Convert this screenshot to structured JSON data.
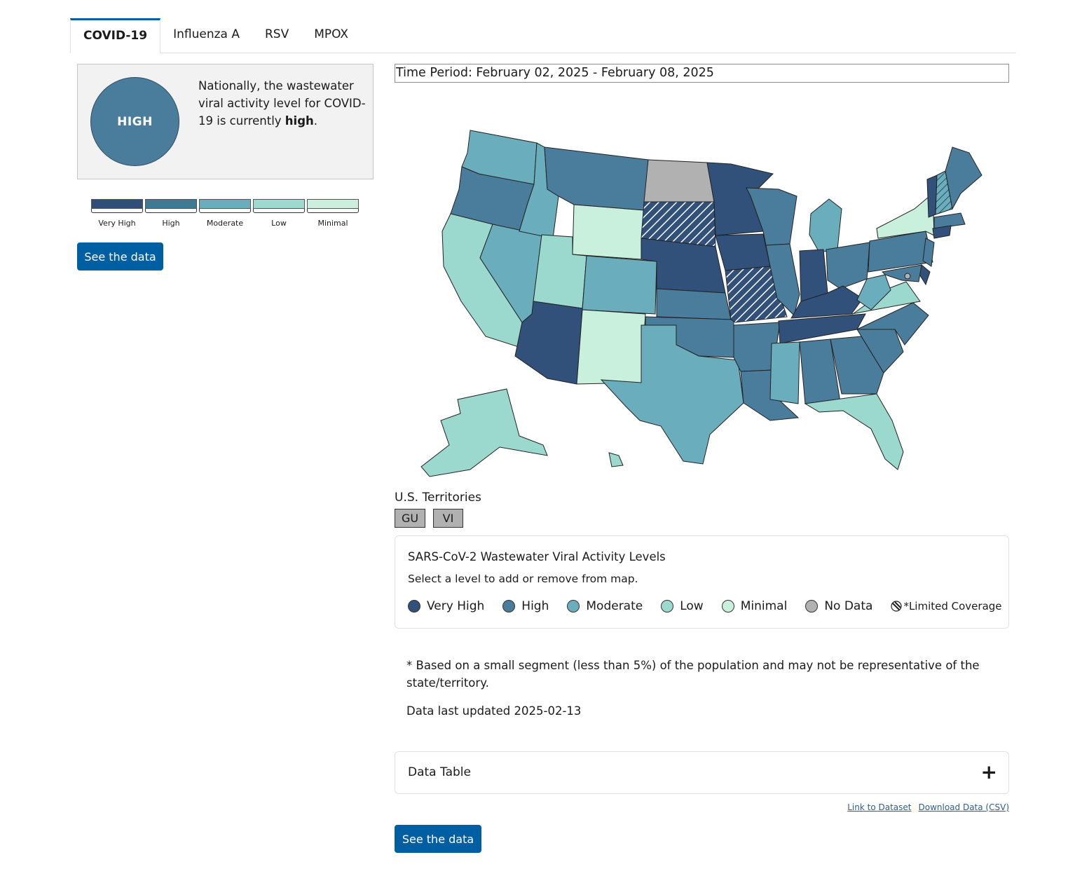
{
  "tabs": [
    {
      "label": "COVID-19",
      "active": true
    },
    {
      "label": "Influenza A",
      "active": false
    },
    {
      "label": "RSV",
      "active": false
    },
    {
      "label": "MPOX",
      "active": false
    }
  ],
  "summary": {
    "level_badge": "HIGH",
    "text_prefix": "Nationally, the wastewater viral activity level for COVID-19 is currently",
    "text_level": "high",
    "text_suffix": "."
  },
  "scale": [
    {
      "label": "Very High",
      "color": "#2f4f78"
    },
    {
      "label": "High",
      "color": "#3f7a93"
    },
    {
      "label": "Moderate",
      "color": "#6aaebe"
    },
    {
      "label": "Low",
      "color": "#9dd9cf"
    },
    {
      "label": "Minimal",
      "color": "#cbeedd"
    }
  ],
  "see_data_label": "See the data",
  "time_period": "Time Period: February 02, 2025 - February 08, 2025",
  "colors": {
    "very_high": "#31507a",
    "high": "#4a7d9b",
    "moderate": "#6aaebd",
    "low": "#9bd8cd",
    "minimal": "#c9f0dc",
    "no_data": "#b1b1b1"
  },
  "state_levels": {
    "WA": "moderate",
    "OR": "high",
    "CA": "low",
    "NV": "moderate",
    "ID": "moderate",
    "MT": "high",
    "WY": "minimal",
    "UT": "low",
    "AZ": "very_high",
    "CO": "moderate",
    "NM": "minimal",
    "ND": "no_data",
    "SD": "very_high",
    "NE": "very_high",
    "KS": "high",
    "OK": "high",
    "TX": "moderate",
    "MN": "very_high",
    "IA": "very_high",
    "MO": "very_high",
    "AR": "high",
    "LA": "high",
    "WI": "high",
    "IL": "high",
    "MI": "moderate",
    "IN": "very_high",
    "OH": "high",
    "KY": "very_high",
    "TN": "very_high",
    "MS": "moderate",
    "AL": "high",
    "GA": "high",
    "FL": "low",
    "SC": "high",
    "NC": "high",
    "VA": "low",
    "WV": "moderate",
    "PA": "high",
    "NY": "minimal",
    "NJ": "high",
    "DE": "very_high",
    "MD": "high",
    "VT": "very_high",
    "NH": "moderate",
    "ME": "high",
    "MA": "high",
    "CT": "very_high",
    "AK": "low",
    "HI": "low"
  },
  "limited_coverage": [
    "SD",
    "MO",
    "NH"
  ],
  "territories": {
    "title": "U.S. Territories",
    "items": [
      "GU",
      "VI"
    ]
  },
  "legend": {
    "title": "SARS-CoV-2 Wastewater Viral Activity Levels",
    "subtitle": "Select a level to add or remove from map.",
    "items": [
      {
        "label": "Very High",
        "color": "#31507a"
      },
      {
        "label": "High",
        "color": "#4a7d9b"
      },
      {
        "label": "Moderate",
        "color": "#6aaebd"
      },
      {
        "label": "Low",
        "color": "#9bd8cd"
      },
      {
        "label": "Minimal",
        "color": "#c9f0dc"
      },
      {
        "label": "No Data",
        "color": "#b1b1b1"
      }
    ],
    "limited_label": "*Limited Coverage",
    "limited_icon": "hatch-icon"
  },
  "note": "* Based on a small segment (less than 5%) of the population and may not be representative of the state/territory.",
  "updated": "Data last updated 2025-02-13",
  "accordion": {
    "label": "Data Table",
    "icon": "plus-icon"
  },
  "links": {
    "dataset": "Link to Dataset",
    "csv": "Download Data (CSV)"
  }
}
